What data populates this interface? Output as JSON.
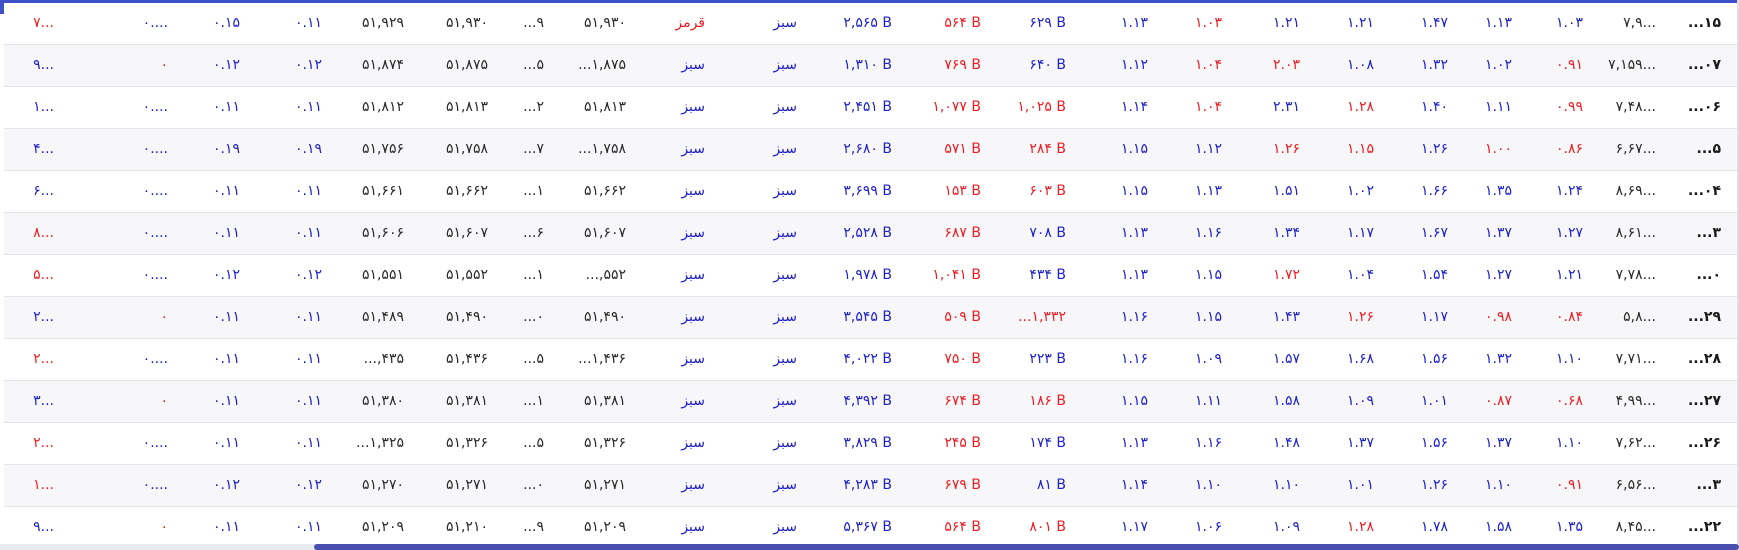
{
  "colors": {
    "positive": "#1f22c9",
    "negative": "#ee1d24",
    "neutral": "#2a2a2a",
    "accent": "#3f51c8"
  },
  "rows": [
    {
      "c1": "۷...",
      "c2": "۰....",
      "c3": "۰.۱۵",
      "c4": "۰.۱۱",
      "c5": "۵۱,۹۲۹",
      "c6": "۵۱,۹۳۰",
      "c7": "...۹",
      "c8": "۵۱,۹۳۰",
      "c9": "قرمز",
      "c10": "سبز",
      "c11": "۲,۵۶۵ B",
      "c12": "۵۶۴ B",
      "c13": "۶۲۹ B",
      "c14": "۱.۱۳",
      "c15": "۱.۰۳",
      "c16": "۱.۲۱",
      "c17": "۱.۲۱",
      "c18": "۱.۴۷",
      "c19": "۱.۱۳",
      "c20": "۱.۰۳",
      "c21": "۷,۹...",
      "c22": "...۱۵"
    },
    {
      "c1": "۹...",
      "c2": "۰",
      "c3": "۰.۱۲",
      "c4": "۰.۱۲",
      "c5": "۵۱,۸۷۴",
      "c6": "۵۱,۸۷۵",
      "c7": "...۵",
      "c8": "...۱,۸۷۵",
      "c9": "سبز",
      "c10": "سبز",
      "c11": "۱,۳۱۰ B",
      "c12": "۷۶۹ B",
      "c13": "۶۴۰ B",
      "c14": "۱.۱۲",
      "c15": "۱.۰۴",
      "c16": "۲.۰۳",
      "c17": "۱.۰۸",
      "c18": "۱.۳۲",
      "c19": "۱.۰۲",
      "c20": "۰.۹۱",
      "c21": "۷,۱۵۹...",
      "c22": "...۰۷"
    },
    {
      "c1": "۱...",
      "c2": "۰....",
      "c3": "۰.۱۱",
      "c4": "۰.۱۱",
      "c5": "۵۱,۸۱۲",
      "c6": "۵۱,۸۱۳",
      "c7": "...۲",
      "c8": "۵۱,۸۱۳",
      "c9": "سبز",
      "c10": "سبز",
      "c11": "۲,۴۵۱ B",
      "c12": "۱,۰۷۷ B",
      "c13": "۱,۰۲۵ B",
      "c14": "۱.۱۴",
      "c15": "۱.۰۴",
      "c16": "۲.۳۱",
      "c17": "۱.۲۸",
      "c18": "۱.۴۰",
      "c19": "۱.۱۱",
      "c20": "۰.۹۹",
      "c21": "۷,۴۸...",
      "c22": "...۰۶"
    },
    {
      "c1": "۴...",
      "c2": "۰....",
      "c3": "۰.۱۹",
      "c4": "۰.۱۹",
      "c5": "۵۱,۷۵۶",
      "c6": "۵۱,۷۵۸",
      "c7": "...۷",
      "c8": "...۱,۷۵۸",
      "c9": "سبز",
      "c10": "سبز",
      "c11": "۲,۶۸۰ B",
      "c12": "۵۷۱ B",
      "c13": "۲۸۴ B",
      "c14": "۱.۱۵",
      "c15": "۱.۱۲",
      "c16": "۱.۲۶",
      "c17": "۱.۱۵",
      "c18": "۱.۲۶",
      "c19": "۱.۰۰",
      "c20": "۰.۸۶",
      "c21": "۶,۶۷...",
      "c22": "...۵"
    },
    {
      "c1": "۶...",
      "c2": "۰....",
      "c3": "۰.۱۱",
      "c4": "۰.۱۱",
      "c5": "۵۱,۶۶۱",
      "c6": "۵۱,۶۶۲",
      "c7": "...۱",
      "c8": "۵۱,۶۶۲",
      "c9": "سبز",
      "c10": "سبز",
      "c11": "۳,۶۹۹ B",
      "c12": "۱۵۳ B",
      "c13": "۶۰۳ B",
      "c14": "۱.۱۵",
      "c15": "۱.۱۳",
      "c16": "۱.۵۱",
      "c17": "۱.۰۲",
      "c18": "۱.۶۶",
      "c19": "۱.۳۵",
      "c20": "۱.۲۴",
      "c21": "۸,۶۹...",
      "c22": "...۰۴"
    },
    {
      "c1": "۸...",
      "c2": "۰....",
      "c3": "۰.۱۱",
      "c4": "۰.۱۱",
      "c5": "۵۱,۶۰۶",
      "c6": "۵۱,۶۰۷",
      "c7": "...۶",
      "c8": "۵۱,۶۰۷",
      "c9": "سبز",
      "c10": "سبز",
      "c11": "۲,۵۲۸ B",
      "c12": "۶۸۷ B",
      "c13": "۷۰۸ B",
      "c14": "۱.۱۳",
      "c15": "۱.۱۶",
      "c16": "۱.۳۴",
      "c17": "۱.۱۷",
      "c18": "۱.۶۷",
      "c19": "۱.۳۷",
      "c20": "۱.۲۷",
      "c21": "۸,۶۱...",
      "c22": "...۳"
    },
    {
      "c1": "۵...",
      "c2": "۰....",
      "c3": "۰.۱۲",
      "c4": "۰.۱۲",
      "c5": "۵۱,۵۵۱",
      "c6": "۵۱,۵۵۲",
      "c7": "...۱",
      "c8": "...,۵۵۲",
      "c9": "سبز",
      "c10": "سبز",
      "c11": "۱,۹۷۸ B",
      "c12": "۱,۰۴۱ B",
      "c13": "۴۳۴ B",
      "c14": "۱.۱۳",
      "c15": "۱.۱۵",
      "c16": "۱.۷۲",
      "c17": "۱.۰۴",
      "c18": "۱.۵۴",
      "c19": "۱.۲۷",
      "c20": "۱.۲۱",
      "c21": "۷,۷۸...",
      "c22": "...۰"
    },
    {
      "c1": "۲...",
      "c2": "۰",
      "c3": "۰.۱۱",
      "c4": "۰.۱۱",
      "c5": "۵۱,۴۸۹",
      "c6": "۵۱,۴۹۰",
      "c7": "...۰",
      "c8": "۵۱,۴۹۰",
      "c9": "سبز",
      "c10": "سبز",
      "c11": "۳,۵۴۵ B",
      "c12": "۵۰۹ B",
      "c13": "...۱,۳۳۲",
      "c14": "۱.۱۶",
      "c15": "۱.۱۵",
      "c16": "۱.۴۳",
      "c17": "۱.۲۶",
      "c18": "۱.۱۷",
      "c19": "۰.۹۸",
      "c20": "۰.۸۴",
      "c21": "۵,۸...",
      "c22": "...۲۹"
    },
    {
      "c1": "۲...",
      "c2": "۰....",
      "c3": "۰.۱۱",
      "c4": "۰.۱۱",
      "c5": "...,۴۳۵",
      "c6": "۵۱,۴۳۶",
      "c7": "...۵",
      "c8": "...۱,۴۳۶",
      "c9": "سبز",
      "c10": "سبز",
      "c11": "۴,۰۲۲ B",
      "c12": "۷۵۰ B",
      "c13": "۲۲۳ B",
      "c14": "۱.۱۶",
      "c15": "۱.۰۹",
      "c16": "۱.۵۷",
      "c17": "۱.۶۸",
      "c18": "۱.۵۶",
      "c19": "۱.۳۲",
      "c20": "۱.۱۰",
      "c21": "۷,۷۱...",
      "c22": "...۲۸"
    },
    {
      "c1": "۳...",
      "c2": "۰",
      "c3": "۰.۱۱",
      "c4": "۰.۱۱",
      "c5": "۵۱,۳۸۰",
      "c6": "۵۱,۳۸۱",
      "c7": "...۱",
      "c8": "۵۱,۳۸۱",
      "c9": "سبز",
      "c10": "سبز",
      "c11": "۴,۳۹۲ B",
      "c12": "۶۷۴ B",
      "c13": "۱۸۶ B",
      "c14": "۱.۱۵",
      "c15": "۱.۱۱",
      "c16": "۱.۵۸",
      "c17": "۱.۰۹",
      "c18": "۱.۰۱",
      "c19": "۰.۸۷",
      "c20": "۰.۶۸",
      "c21": "۴,۹۹...",
      "c22": "...۲۷"
    },
    {
      "c1": "۲...",
      "c2": "۰....",
      "c3": "۰.۱۱",
      "c4": "۰.۱۱",
      "c5": "...۱,۳۲۵",
      "c6": "۵۱,۳۲۶",
      "c7": "...۵",
      "c8": "۵۱,۳۲۶",
      "c9": "سبز",
      "c10": "سبز",
      "c11": "۳,۸۲۹ B",
      "c12": "۲۴۵ B",
      "c13": "۱۷۴ B",
      "c14": "۱.۱۳",
      "c15": "۱.۱۶",
      "c16": "۱.۴۸",
      "c17": "۱.۳۷",
      "c18": "۱.۵۶",
      "c19": "۱.۳۷",
      "c20": "۱.۱۰",
      "c21": "۷,۶۲...",
      "c22": "...۲۶"
    },
    {
      "c1": "۱...",
      "c2": "۰....",
      "c3": "۰.۱۲",
      "c4": "۰.۱۲",
      "c5": "۵۱,۲۷۰",
      "c6": "۵۱,۲۷۱",
      "c7": "...۰",
      "c8": "۵۱,۲۷۱",
      "c9": "سبز",
      "c10": "سبز",
      "c11": "۴,۲۸۳ B",
      "c12": "۶۷۹ B",
      "c13": "۸۱ B",
      "c14": "۱.۱۴",
      "c15": "۱.۱۰",
      "c16": "۱.۱۰",
      "c17": "۱.۰۱",
      "c18": "۱.۲۶",
      "c19": "۱.۱۰",
      "c20": "۰.۹۱",
      "c21": "۶,۵۶...",
      "c22": "...۳"
    },
    {
      "c1": "۹...",
      "c2": "۰",
      "c3": "۰.۱۱",
      "c4": "۰.۱۱",
      "c5": "۵۱,۲۰۹",
      "c6": "۵۱,۲۱۰",
      "c7": "...۹",
      "c8": "۵۱,۲۰۹",
      "c9": "سبز",
      "c10": "سبز",
      "c11": "۵,۳۶۷ B",
      "c12": "۵۶۴ B",
      "c13": "۸۰۱ B",
      "c14": "۱.۱۷",
      "c15": "۱.۰۶",
      "c16": "۱.۰۹",
      "c17": "۱.۲۸",
      "c18": "۱.۷۸",
      "c19": "۱.۵۸",
      "c20": "۱.۳۵",
      "c21": "۸,۴۵...",
      "c22": "...۲۲"
    }
  ]
}
